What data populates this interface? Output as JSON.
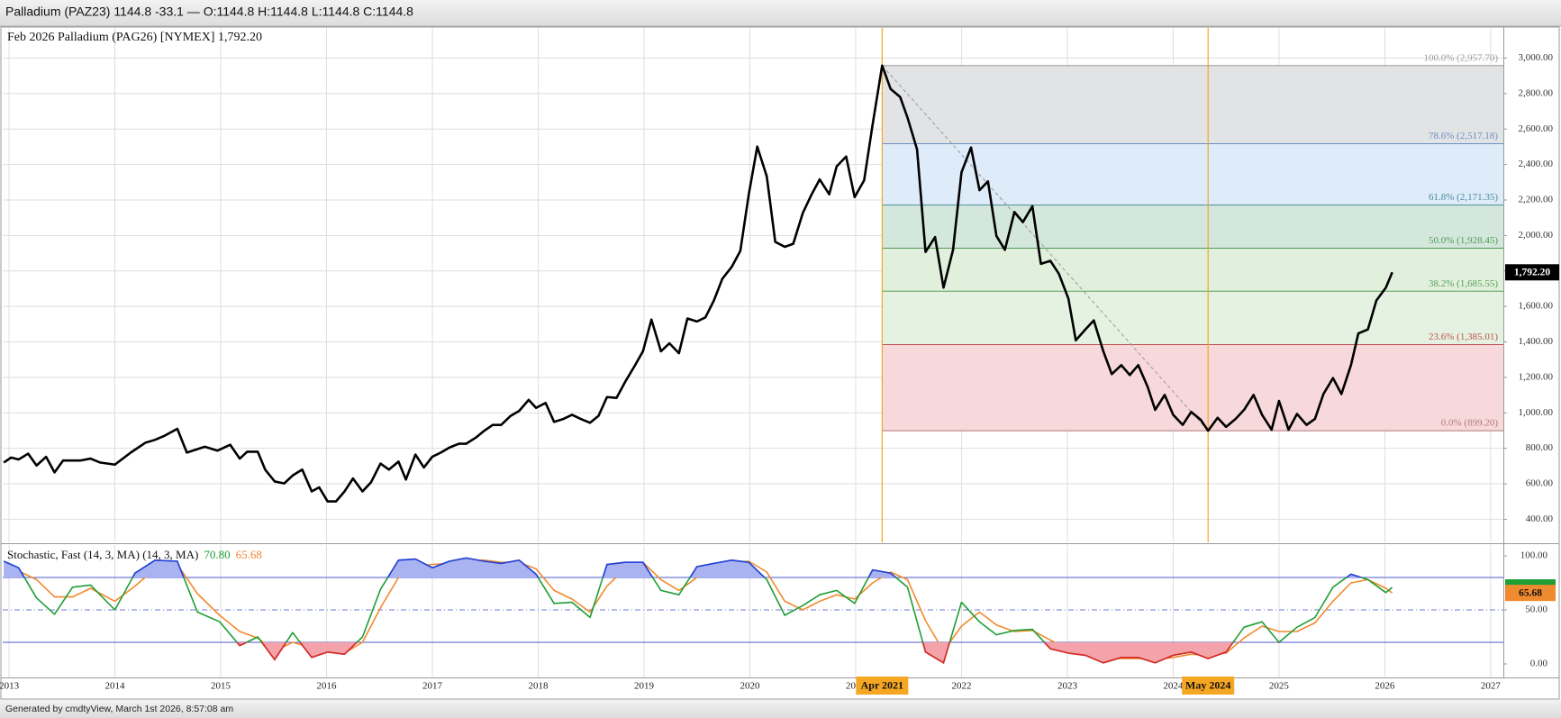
{
  "header": {
    "text": "Palladium (PAZ23) 1144.8 -33.1 — O:1144.8 H:1144.8 L:1144.8 C:1144.8"
  },
  "footer": {
    "text": "Generated by cmdtyView, March 1st 2026, 8:57:08 am"
  },
  "chart_data": [
    {
      "type": "line",
      "title": "Feb 2026 Palladium (PAG26) [NYMEX] 1,792.20",
      "color": "#000000",
      "x": [
        2012.95,
        2013.02,
        2013.09,
        2013.18,
        2013.26,
        2013.35,
        2013.43,
        2013.51,
        2013.67,
        2013.77,
        2013.86,
        2014.0,
        2014.15,
        2014.29,
        2014.38,
        2014.47,
        2014.59,
        2014.68,
        2014.85,
        2014.97,
        2015.09,
        2015.18,
        2015.25,
        2015.35,
        2015.42,
        2015.51,
        2015.6,
        2015.68,
        2015.77,
        2015.86,
        2015.93,
        2016.01,
        2016.09,
        2016.17,
        2016.25,
        2016.34,
        2016.42,
        2016.51,
        2016.59,
        2016.68,
        2016.75,
        2016.84,
        2016.92,
        2017.0,
        2017.08,
        2017.16,
        2017.25,
        2017.32,
        2017.41,
        2017.49,
        2017.57,
        2017.65,
        2017.74,
        2017.82,
        2017.91,
        2017.98,
        2018.07,
        2018.15,
        2018.24,
        2018.32,
        2018.4,
        2018.49,
        2018.57,
        2018.65,
        2018.74,
        2018.82,
        2018.91,
        2018.99,
        2019.07,
        2019.16,
        2019.24,
        2019.33,
        2019.41,
        2019.5,
        2019.58,
        2019.66,
        2019.74,
        2019.83,
        2019.91,
        2019.99,
        2020.07,
        2020.16,
        2020.24,
        2020.33,
        2020.41,
        2020.5,
        2020.58,
        2020.66,
        2020.75,
        2020.82,
        2020.91,
        2020.99,
        2021.08,
        2021.16,
        2021.25,
        2021.33,
        2021.42,
        2021.49,
        2021.58,
        2021.66,
        2021.75,
        2021.83,
        2021.92,
        2022.0,
        2022.09,
        2022.17,
        2022.25,
        2022.33,
        2022.41,
        2022.5,
        2022.58,
        2022.67,
        2022.75,
        2022.84,
        2022.92,
        2023.01,
        2023.08,
        2023.17,
        2023.25,
        2023.34,
        2023.42,
        2023.51,
        2023.59,
        2023.67,
        2023.76,
        2023.83,
        2023.92,
        2024.0,
        2024.09,
        2024.17,
        2024.26,
        2024.33,
        2024.42,
        2024.5,
        2024.59,
        2024.67,
        2024.76,
        2024.84,
        2024.93,
        2025.0,
        2025.09,
        2025.17,
        2025.26,
        2025.34,
        2025.42,
        2025.51,
        2025.59,
        2025.68,
        2025.75,
        2025.84,
        2025.92,
        2026.01,
        2026.07
      ],
      "values": [
        720,
        748,
        737,
        770,
        703,
        752,
        664,
        731,
        731,
        742,
        720,
        708,
        776,
        832,
        848,
        871,
        910,
        776,
        809,
        787,
        820,
        742,
        781,
        781,
        680,
        613,
        602,
        647,
        680,
        557,
        580,
        501,
        501,
        557,
        630,
        557,
        608,
        714,
        680,
        725,
        624,
        765,
        692,
        753,
        776,
        804,
        826,
        826,
        860,
        899,
        932,
        932,
        983,
        1011,
        1073,
        1028,
        1056,
        949,
        966,
        989,
        966,
        944,
        983,
        1089,
        1084,
        1173,
        1263,
        1347,
        1526,
        1347,
        1392,
        1336,
        1532,
        1515,
        1538,
        1633,
        1756,
        1824,
        1913,
        2232,
        2501,
        2333,
        1964,
        1936,
        1953,
        2126,
        2227,
        2316,
        2232,
        2389,
        2445,
        2216,
        2311,
        2625,
        2957.7,
        2826,
        2781,
        2664,
        2485,
        1907,
        1991,
        1706,
        1919,
        2356,
        2496,
        2255,
        2305,
        1997,
        1919,
        2132,
        2075,
        2165,
        1840,
        1857,
        1784,
        1644,
        1409,
        1470,
        1521,
        1347,
        1218,
        1269,
        1213,
        1269,
        1145,
        1017,
        1101,
        989,
        932,
        1005,
        961,
        899.2,
        972,
        921,
        966,
        1017,
        1101,
        989,
        905,
        1067,
        905,
        994,
        932,
        966,
        1106,
        1196,
        1106,
        1269,
        1448,
        1470,
        1633,
        1706,
        1792.2
      ],
      "last_value": {
        "value": 1792.2,
        "label": "1,792.20"
      },
      "xlim": [
        2012.94,
        2027.12
      ],
      "xticks": [
        2013,
        2014,
        2015,
        2016,
        2017,
        2018,
        2019,
        2020,
        2021,
        2022,
        2023,
        2024,
        2025,
        2026,
        2027
      ],
      "ylim": [
        270,
        3170
      ],
      "yticks": [
        {
          "value": 400,
          "label": "400.00"
        },
        {
          "value": 600,
          "label": "600.00"
        },
        {
          "value": 800,
          "label": "800.00"
        },
        {
          "value": 1000,
          "label": "1,000.00"
        },
        {
          "value": 1200,
          "label": "1,200.00"
        },
        {
          "value": 1400,
          "label": "1,400.00"
        },
        {
          "value": 1600,
          "label": "1,600.00"
        },
        {
          "value": 1800,
          "label": "1,800.00"
        },
        {
          "value": 2000,
          "label": "2,000.00"
        },
        {
          "value": 2200,
          "label": "2,200.00"
        },
        {
          "value": 2400,
          "label": "2,400.00"
        },
        {
          "value": 2600,
          "label": "2,600.00"
        },
        {
          "value": 2800,
          "label": "2,800.00"
        },
        {
          "value": 3000,
          "label": "3,000.00"
        }
      ],
      "grid": "both",
      "fibonacci": {
        "start": {
          "x": 2021.25,
          "label": "Apr 2021"
        },
        "end": {
          "x": 2024.33,
          "label": "May 2024"
        },
        "marker_color": "#f5a623",
        "levels": [
          {
            "value": 2957.7,
            "label": "100.0% (2,957.70)",
            "color": "#9a9a9a"
          },
          {
            "value": 2517.18,
            "label": "78.6% (2,517.18)",
            "color": "#6d8fc4"
          },
          {
            "value": 2171.35,
            "label": "61.8% (2,171.35)",
            "color": "#4a8ba0"
          },
          {
            "value": 1928.45,
            "label": "50.0% (1,928.45)",
            "color": "#4f9a55"
          },
          {
            "value": 1685.55,
            "label": "38.2% (1,685.55)",
            "color": "#5aa05a"
          },
          {
            "value": 1385.01,
            "label": "23.6% (1,385.01)",
            "color": "#c0504d"
          },
          {
            "value": 899.2,
            "label": "0.0% (899.20)",
            "color": "#b07878"
          }
        ],
        "zone_colors": [
          "#e2e3e5",
          "#deebf8",
          "#d4e7dd",
          "#e0f0dc",
          "#e5f2e1",
          "#f7d9dc"
        ]
      }
    },
    {
      "type": "line",
      "title": "Stochastic, Fast (14, 3, MA) (14, 3, MA)",
      "x": [
        2012.95,
        2013.09,
        2013.26,
        2013.43,
        2013.6,
        2013.77,
        2014.0,
        2014.19,
        2014.38,
        2014.59,
        2014.78,
        2014.99,
        2015.18,
        2015.35,
        2015.51,
        2015.68,
        2015.86,
        2016.01,
        2016.17,
        2016.34,
        2016.51,
        2016.68,
        2016.84,
        2017.0,
        2017.16,
        2017.32,
        2017.49,
        2017.65,
        2017.82,
        2017.98,
        2018.15,
        2018.32,
        2018.49,
        2018.65,
        2018.82,
        2018.99,
        2019.16,
        2019.33,
        2019.5,
        2019.66,
        2019.83,
        2019.99,
        2020.16,
        2020.33,
        2020.5,
        2020.66,
        2020.82,
        2020.99,
        2021.16,
        2021.33,
        2021.49,
        2021.66,
        2021.83,
        2022.0,
        2022.17,
        2022.33,
        2022.5,
        2022.67,
        2022.84,
        2023.01,
        2023.17,
        2023.34,
        2023.51,
        2023.67,
        2023.83,
        2024.0,
        2024.17,
        2024.33,
        2024.5,
        2024.67,
        2024.84,
        2025.0,
        2025.17,
        2025.34,
        2025.51,
        2025.68,
        2025.84,
        2026.01,
        2026.07
      ],
      "series": [
        {
          "color": "#1f9e35",
          "overbought_color": "#2b3fe0",
          "oversold_color": "#e3242b",
          "overbought_fill": "#aab3f2",
          "oversold_fill": "#f4a3aa",
          "readout": {
            "value": 70.8,
            "label": "70.80"
          },
          "values": [
            95,
            89,
            61,
            46,
            71,
            73,
            50,
            84,
            96,
            95,
            48,
            39,
            17,
            25,
            4,
            29,
            6,
            11,
            9,
            25,
            69,
            96,
            97,
            89,
            95,
            98,
            95,
            93,
            96,
            83,
            56,
            57,
            43,
            92,
            94,
            94,
            68,
            64,
            90,
            93,
            96,
            94,
            78,
            45,
            54,
            64,
            68,
            56,
            87,
            84,
            71,
            11,
            1,
            57,
            39,
            27,
            31,
            32,
            14,
            10,
            8,
            1,
            6,
            6,
            1,
            8,
            11,
            5,
            11,
            34,
            39,
            20,
            34,
            43,
            71,
            83,
            78,
            66,
            70.8
          ]
        },
        {
          "color": "#f08a2e",
          "readout": {
            "value": 65.68,
            "label": "65.68"
          },
          "values": [
            85,
            86,
            78,
            62,
            62,
            70,
            58,
            72,
            88,
            92,
            65,
            45,
            30,
            24,
            12,
            20,
            15,
            12,
            10,
            20,
            52,
            80,
            90,
            92,
            93,
            96,
            96,
            94,
            94,
            88,
            68,
            60,
            48,
            72,
            88,
            94,
            78,
            68,
            80,
            90,
            94,
            95,
            85,
            58,
            50,
            58,
            64,
            60,
            75,
            85,
            78,
            40,
            12,
            35,
            48,
            36,
            30,
            31,
            22,
            14,
            10,
            5,
            5,
            5,
            4,
            6,
            9,
            8,
            10,
            24,
            35,
            30,
            30,
            38,
            58,
            75,
            78,
            70,
            65.68
          ]
        }
      ],
      "levels": [
        80,
        50,
        20
      ],
      "level_color": "#4a5bd0",
      "xlim": [
        2012.94,
        2027.12
      ],
      "xticks": [
        2013,
        2014,
        2015,
        2016,
        2017,
        2018,
        2019,
        2020,
        2021,
        2022,
        2023,
        2024,
        2025,
        2026,
        2027
      ],
      "ylim": [
        -12.5,
        110
      ],
      "yticks": [
        {
          "value": 0,
          "label": "0.00"
        },
        {
          "value": 50,
          "label": "50.00"
        },
        {
          "value": 100,
          "label": "100.00"
        }
      ],
      "grid": "x"
    }
  ]
}
